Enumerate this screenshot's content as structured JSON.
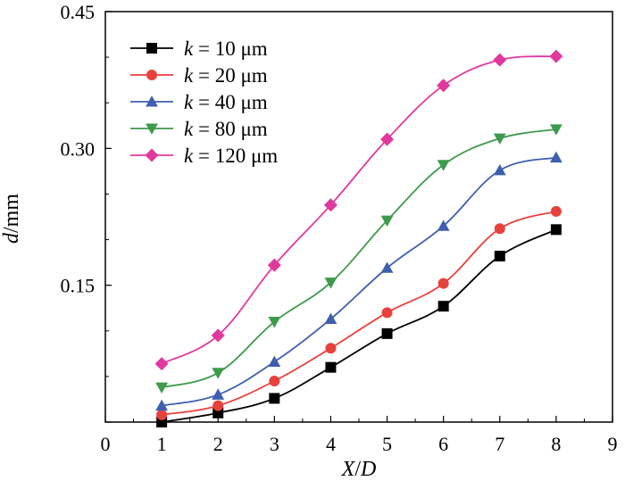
{
  "chart_data": {
    "type": "line",
    "title": "",
    "xlabel": {
      "var": "X",
      "sep": "/",
      "var2": "D"
    },
    "ylabel": {
      "var": "d",
      "unit": "/mm"
    },
    "xlim": [
      0,
      9
    ],
    "ylim": [
      0,
      0.45
    ],
    "xticks": [
      "0",
      "1",
      "2",
      "3",
      "4",
      "5",
      "6",
      "7",
      "8",
      "9"
    ],
    "yticks": [
      {
        "value": 0.15,
        "label": "0.15"
      },
      {
        "value": 0.3,
        "label": "0.30"
      },
      {
        "value": 0.45,
        "label": "0.45"
      }
    ],
    "x": [
      1,
      2,
      3,
      4,
      5,
      6,
      7,
      8
    ],
    "legend_position": "top-left",
    "series": [
      {
        "name": "k = 10 μm",
        "k_symbol": "k",
        "rest": " = 10 μm",
        "color": "#000000",
        "marker": "square",
        "values": [
          0.0,
          0.01,
          0.026,
          0.06,
          0.097,
          0.127,
          0.182,
          0.211
        ]
      },
      {
        "name": "k = 20 μm",
        "k_symbol": "k",
        "rest": " = 20 μm",
        "color": "#e8413c",
        "marker": "circle",
        "values": [
          0.008,
          0.018,
          0.045,
          0.081,
          0.12,
          0.152,
          0.212,
          0.231
        ]
      },
      {
        "name": "k = 40 μm",
        "k_symbol": "k",
        "rest": " = 40 μm",
        "color": "#3f5fae",
        "marker": "triangle-up",
        "values": [
          0.018,
          0.03,
          0.066,
          0.113,
          0.169,
          0.215,
          0.276,
          0.29
        ]
      },
      {
        "name": "k = 80 μm",
        "k_symbol": "k",
        "rest": " = 80 μm",
        "color": "#3e9a4c",
        "marker": "triangle-down",
        "values": [
          0.038,
          0.054,
          0.11,
          0.153,
          0.221,
          0.282,
          0.311,
          0.321
        ]
      },
      {
        "name": "k = 120 μm",
        "k_symbol": "k",
        "rest": " = 120 μm",
        "color": "#e0399d",
        "marker": "diamond",
        "values": [
          0.064,
          0.095,
          0.172,
          0.238,
          0.31,
          0.369,
          0.397,
          0.401
        ]
      }
    ]
  }
}
